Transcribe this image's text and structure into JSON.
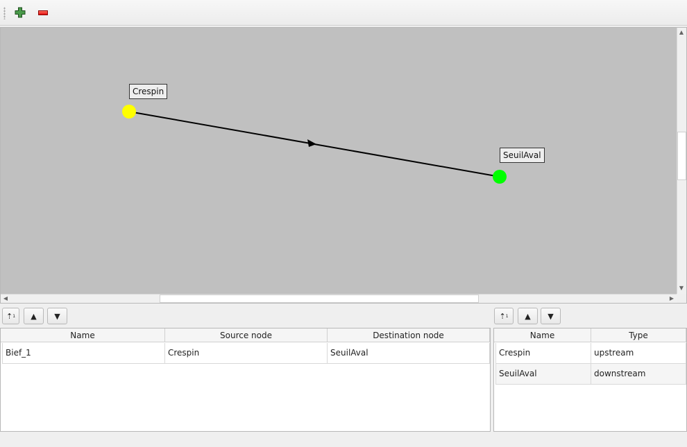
{
  "toolbar": {
    "add_icon": "plus-icon",
    "remove_icon": "minus-icon"
  },
  "graph": {
    "nodes": [
      {
        "name": "Crespin",
        "color": "#ffff00"
      },
      {
        "name": "SeuilAval",
        "color": "#00ff00"
      }
    ],
    "edge": {
      "from": "Crespin",
      "to": "SeuilAval"
    },
    "background": "#c0c0c0"
  },
  "edges_table": {
    "columns": [
      "Name",
      "Source node",
      "Destination node"
    ],
    "rows": [
      [
        "Bief_1",
        "Crespin",
        "SeuilAval"
      ]
    ]
  },
  "nodes_table": {
    "columns": [
      "Name",
      "Type"
    ],
    "rows": [
      [
        "Crespin",
        "upstream"
      ],
      [
        "SeuilAval",
        "downstream"
      ]
    ]
  },
  "buttons": {
    "sort_icon": "sort-icon",
    "up_icon": "triangle-up-icon",
    "down_icon": "triangle-down-icon"
  }
}
